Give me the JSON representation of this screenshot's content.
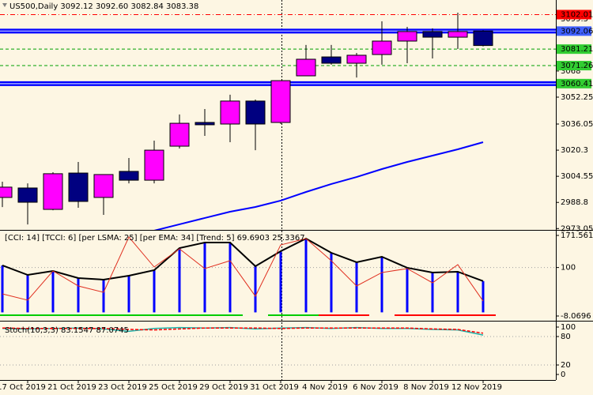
{
  "chart_data": [
    {
      "type": "candlestick",
      "title": "US500,Daily  3092.12 3092.60 3082.84 3083.38",
      "categories": [
        null,
        "17 Oct 2019",
        null,
        "21 Oct 2019",
        null,
        "23 Oct 2019",
        null,
        "25 Oct 2019",
        null,
        "29 Oct 2019",
        null,
        "31 Oct 2019",
        null,
        "4 Nov 2019",
        null,
        "6 Nov 2019",
        null,
        "8 Nov 2019",
        null,
        "12 Nov 2019"
      ],
      "open": [
        2991.8,
        2997.5,
        2984.6,
        3006.5,
        2991.8,
        3007.5,
        3002.2,
        3022.7,
        3037.0,
        3036.05,
        3049.9,
        3037.0,
        3065.1,
        3076.5,
        3072.7,
        3077.95,
        3086.05,
        3091.8,
        3088.4,
        3092.12
      ],
      "high": [
        3001.3,
        3000.3,
        3007.0,
        3013.2,
        3005.6,
        3015.6,
        3026.05,
        3041.8,
        3045.1,
        3053.7,
        3050.8,
        3062.2,
        3083.7,
        3083.7,
        3078.9,
        3097.95,
        3094.6,
        3093.7,
        3103.2,
        3092.6
      ],
      "low": [
        2986.0,
        2975.5,
        2984.1,
        2985.6,
        2981.3,
        3000.3,
        3000.3,
        3021.3,
        3028.9,
        3025.1,
        3020.3,
        3036.05,
        3065.1,
        3071.8,
        3064.1,
        3071.8,
        3072.7,
        3075.6,
        3081.3,
        3082.84
      ],
      "close": [
        2998.0,
        2988.9,
        3006.1,
        2989.4,
        3005.6,
        3002.2,
        3020.3,
        3036.5,
        3035.6,
        3049.9,
        3036.05,
        3062.2,
        3075.1,
        3072.7,
        3077.5,
        3086.05,
        3091.8,
        3088.4,
        3091.8,
        3083.38
      ],
      "up_color": "#ff00ff",
      "down_color": "#000080",
      "ma": {
        "color": "#0000ff",
        "values": [
          null,
          null,
          null,
          null,
          null,
          null,
          2971.8,
          2975.6,
          2979.4,
          2983.2,
          2986.05,
          2989.9,
          2995.1,
          2999.9,
          3004.1,
          3008.9,
          3013.2,
          3017.0,
          3020.8,
          3025.1
        ]
      },
      "levels": [
        {
          "value": 3102.01,
          "color": "#ff0000",
          "style": "dashdot",
          "label_color": "#ff0000"
        },
        {
          "value": 3092.06,
          "color": "#0000ff",
          "style": "thick",
          "label_color": "#4060ff"
        },
        {
          "value": 3081.21,
          "color": "#00a000",
          "style": "dash",
          "label_color": "#32cd32"
        },
        {
          "value": 3071.26,
          "color": "#00a000",
          "style": "dash",
          "label_color": "#32cd32"
        },
        {
          "value": 3060.41,
          "color": "#0000ff",
          "style": "thick",
          "label_color": "#32cd32"
        }
      ],
      "ylim": [
        2973.05,
        3110.81
      ],
      "yticks": [
        3099.5,
        3068.0,
        3052.25,
        3036.05,
        3020.3,
        3004.55,
        2988.8,
        2973.05
      ]
    },
    {
      "type": "indicator",
      "title": "[CCI: 14] [TCCI: 6] [per LSMA: 25] [per EMA: 34] [Trend: 5]  69.6903 25.3367",
      "series": [
        {
          "color": "#000000",
          "values": [
            104.7,
            83.5,
            92.3,
            76.5,
            73.0,
            81.8,
            94.1,
            143.4,
            155.7,
            155.7,
            102.9,
            136.4,
            164.5,
            132.8,
            111.7,
            124.0,
            99.4,
            88.8,
            90.6,
            69.6903
          ]
        },
        {
          "color": "#e03020",
          "values": [
            41.3,
            27.2,
            92.3,
            58.9,
            44.8,
            168.0,
            101.1,
            141.6,
            97.6,
            115.2,
            36.0,
            150.4,
            164.5,
            115.2,
            58.9,
            88.8,
            97.6,
            65.9,
            106.4,
            25.3367
          ]
        }
      ],
      "bar_color": "#0000ff",
      "trend_colors": [
        "#00cc00",
        "#00cc00",
        "#00cc00",
        "#00cc00",
        "#00cc00",
        "#00cc00",
        "#00cc00",
        "#00cc00",
        "#00cc00",
        "#00cc00",
        null,
        "#00cc00",
        "#00cc00",
        "#ff0000",
        "#ff0000",
        null,
        "#ff0000",
        "#ff0000",
        "#ff0000",
        "#ff0000"
      ],
      "ylim": [
        -8.0696,
        171.5616
      ],
      "yticks": [
        171.5616,
        100,
        -8.0696
      ],
      "grid_ticks": [
        100
      ]
    },
    {
      "type": "line",
      "title": "Stoch(10,3,3) 83.1547 87.0745",
      "series": [
        {
          "color": "#20b2aa",
          "values": [
            97,
            96,
            97,
            98,
            96,
            91,
            97,
            99,
            98,
            99,
            96,
            98,
            99,
            97,
            99,
            97,
            97,
            95,
            94,
            83.1547
          ]
        },
        {
          "color": "#ff0000",
          "values": [
            98,
            97,
            97,
            97,
            97,
            95,
            94,
            96,
            98,
            98,
            98,
            97,
            98,
            98,
            98,
            98,
            98,
            96,
            95,
            87.0745
          ]
        }
      ],
      "ylim": [
        0,
        100
      ],
      "yticks": [
        100,
        80,
        20,
        0
      ],
      "grid_ticks": [
        80,
        20
      ]
    }
  ]
}
